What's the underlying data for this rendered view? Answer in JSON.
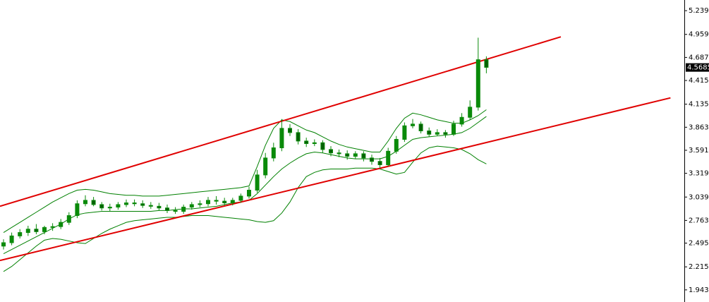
{
  "chart_data": {
    "type": "candlestick",
    "ylim": [
      1.8,
      5.365
    ],
    "yticks": [
      {
        "value": 5.239,
        "label": "5.2390"
      },
      {
        "value": 4.959,
        "label": "4.9590"
      },
      {
        "value": 4.687,
        "label": "4.6870"
      },
      {
        "value": 4.415,
        "label": "4.4150"
      },
      {
        "value": 4.135,
        "label": "4.1350"
      },
      {
        "value": 3.863,
        "label": "3.8630"
      },
      {
        "value": 3.591,
        "label": "3.5910"
      },
      {
        "value": 3.319,
        "label": "3.3190"
      },
      {
        "value": 3.039,
        "label": "3.0390"
      },
      {
        "value": 2.763,
        "label": "2.7630"
      },
      {
        "value": 2.495,
        "label": "2.4950"
      },
      {
        "value": 2.215,
        "label": "2.2150"
      },
      {
        "value": 1.943,
        "label": "1.9430"
      }
    ],
    "last_price": {
      "value": 4.5685,
      "label": "4.5685"
    },
    "candle_color": "#0a8a0a",
    "open": [
      2.46,
      2.5,
      2.58,
      2.62,
      2.66,
      2.63,
      2.68,
      2.69,
      2.74,
      2.82,
      2.96,
      3.0,
      2.95,
      2.91,
      2.92,
      2.95,
      2.97,
      2.96,
      2.94,
      2.93,
      2.91,
      2.88,
      2.87,
      2.92,
      2.95,
      2.96,
      3.0,
      2.99,
      2.97,
      3.0,
      3.05,
      3.12,
      3.3,
      3.5,
      3.62,
      3.85,
      3.8,
      3.7,
      3.67,
      3.68,
      3.6,
      3.56,
      3.55,
      3.52,
      3.55,
      3.5,
      3.46,
      3.42,
      3.58,
      3.72,
      3.88,
      3.9,
      3.82,
      3.78,
      3.8,
      3.78,
      3.9,
      3.98,
      4.1,
      4.66
    ],
    "high": [
      2.54,
      2.62,
      2.66,
      2.7,
      2.72,
      2.7,
      2.73,
      2.78,
      2.86,
      3.0,
      3.06,
      3.04,
      2.98,
      2.96,
      2.98,
      3.01,
      3.01,
      3.0,
      2.98,
      2.97,
      2.95,
      2.92,
      2.95,
      2.98,
      3.0,
      3.04,
      3.05,
      3.03,
      3.03,
      3.08,
      3.16,
      3.36,
      3.56,
      3.68,
      3.96,
      3.9,
      3.84,
      3.74,
      3.72,
      3.71,
      3.64,
      3.6,
      3.59,
      3.58,
      3.58,
      3.54,
      3.5,
      3.62,
      3.76,
      3.92,
      3.96,
      3.93,
      3.86,
      3.84,
      3.83,
      3.94,
      4.03,
      4.18,
      4.92,
      4.7
    ],
    "low": [
      2.42,
      2.47,
      2.55,
      2.58,
      2.6,
      2.6,
      2.64,
      2.66,
      2.71,
      2.79,
      2.93,
      2.93,
      2.88,
      2.87,
      2.89,
      2.92,
      2.93,
      2.91,
      2.9,
      2.88,
      2.85,
      2.84,
      2.84,
      2.89,
      2.92,
      2.93,
      2.95,
      2.94,
      2.94,
      2.97,
      3.02,
      3.09,
      3.26,
      3.46,
      3.58,
      3.76,
      3.66,
      3.63,
      3.64,
      3.56,
      3.52,
      3.51,
      3.48,
      3.49,
      3.46,
      3.42,
      3.38,
      3.4,
      3.55,
      3.69,
      3.85,
      3.79,
      3.75,
      3.76,
      3.74,
      3.76,
      3.87,
      3.95,
      4.06,
      4.5
    ],
    "close": [
      2.5,
      2.58,
      2.62,
      2.66,
      2.63,
      2.68,
      2.69,
      2.74,
      2.82,
      2.96,
      3.0,
      2.95,
      2.91,
      2.92,
      2.95,
      2.97,
      2.96,
      2.94,
      2.93,
      2.91,
      2.88,
      2.87,
      2.92,
      2.95,
      2.96,
      3.0,
      2.99,
      2.97,
      3.0,
      3.05,
      3.12,
      3.3,
      3.5,
      3.62,
      3.85,
      3.8,
      3.7,
      3.67,
      3.68,
      3.6,
      3.56,
      3.55,
      3.52,
      3.55,
      3.5,
      3.46,
      3.42,
      3.58,
      3.72,
      3.88,
      3.9,
      3.82,
      3.78,
      3.8,
      3.78,
      3.9,
      3.98,
      4.1,
      4.66,
      4.57
    ],
    "series": [
      {
        "name": "upper",
        "color": "#008000",
        "values": [
          2.62,
          2.68,
          2.74,
          2.8,
          2.86,
          2.92,
          2.98,
          3.03,
          3.08,
          3.12,
          3.13,
          3.12,
          3.1,
          3.08,
          3.07,
          3.06,
          3.06,
          3.05,
          3.05,
          3.05,
          3.06,
          3.07,
          3.08,
          3.09,
          3.1,
          3.11,
          3.12,
          3.13,
          3.14,
          3.15,
          3.17,
          3.4,
          3.65,
          3.85,
          3.95,
          3.93,
          3.88,
          3.83,
          3.8,
          3.75,
          3.7,
          3.66,
          3.63,
          3.61,
          3.59,
          3.57,
          3.57,
          3.7,
          3.85,
          3.97,
          4.03,
          4.01,
          3.98,
          3.95,
          3.93,
          3.91,
          3.91,
          3.95,
          4.0,
          4.07
        ]
      },
      {
        "name": "middle",
        "color": "#008000",
        "values": [
          2.37,
          2.42,
          2.47,
          2.52,
          2.57,
          2.62,
          2.67,
          2.72,
          2.78,
          2.83,
          2.85,
          2.86,
          2.87,
          2.87,
          2.87,
          2.87,
          2.87,
          2.87,
          2.87,
          2.88,
          2.88,
          2.89,
          2.9,
          2.9,
          2.91,
          2.92,
          2.93,
          2.95,
          2.97,
          2.98,
          3.0,
          3.08,
          3.18,
          3.28,
          3.37,
          3.44,
          3.5,
          3.55,
          3.57,
          3.56,
          3.54,
          3.52,
          3.5,
          3.49,
          3.49,
          3.49,
          3.49,
          3.52,
          3.58,
          3.65,
          3.72,
          3.74,
          3.75,
          3.76,
          3.77,
          3.78,
          3.8,
          3.85,
          3.92,
          3.99
        ]
      },
      {
        "name": "lower",
        "color": "#008000",
        "values": [
          2.16,
          2.22,
          2.3,
          2.38,
          2.46,
          2.53,
          2.55,
          2.54,
          2.52,
          2.5,
          2.49,
          2.55,
          2.61,
          2.66,
          2.7,
          2.74,
          2.76,
          2.77,
          2.78,
          2.79,
          2.8,
          2.8,
          2.81,
          2.82,
          2.82,
          2.82,
          2.81,
          2.8,
          2.79,
          2.78,
          2.77,
          2.75,
          2.74,
          2.76,
          2.85,
          2.98,
          3.15,
          3.28,
          3.33,
          3.36,
          3.37,
          3.37,
          3.37,
          3.38,
          3.38,
          3.38,
          3.37,
          3.34,
          3.31,
          3.33,
          3.45,
          3.56,
          3.62,
          3.64,
          3.63,
          3.62,
          3.6,
          3.55,
          3.48,
          3.43
        ]
      }
    ],
    "trend_lines": [
      {
        "color": "#e00000",
        "points": [
          [
            -0.43,
            2.93
          ],
          [
            68.1,
            4.93
          ]
        ]
      },
      {
        "color": "#e00000",
        "points": [
          [
            -0.43,
            2.29
          ],
          [
            81.5,
            4.21
          ]
        ]
      }
    ]
  }
}
